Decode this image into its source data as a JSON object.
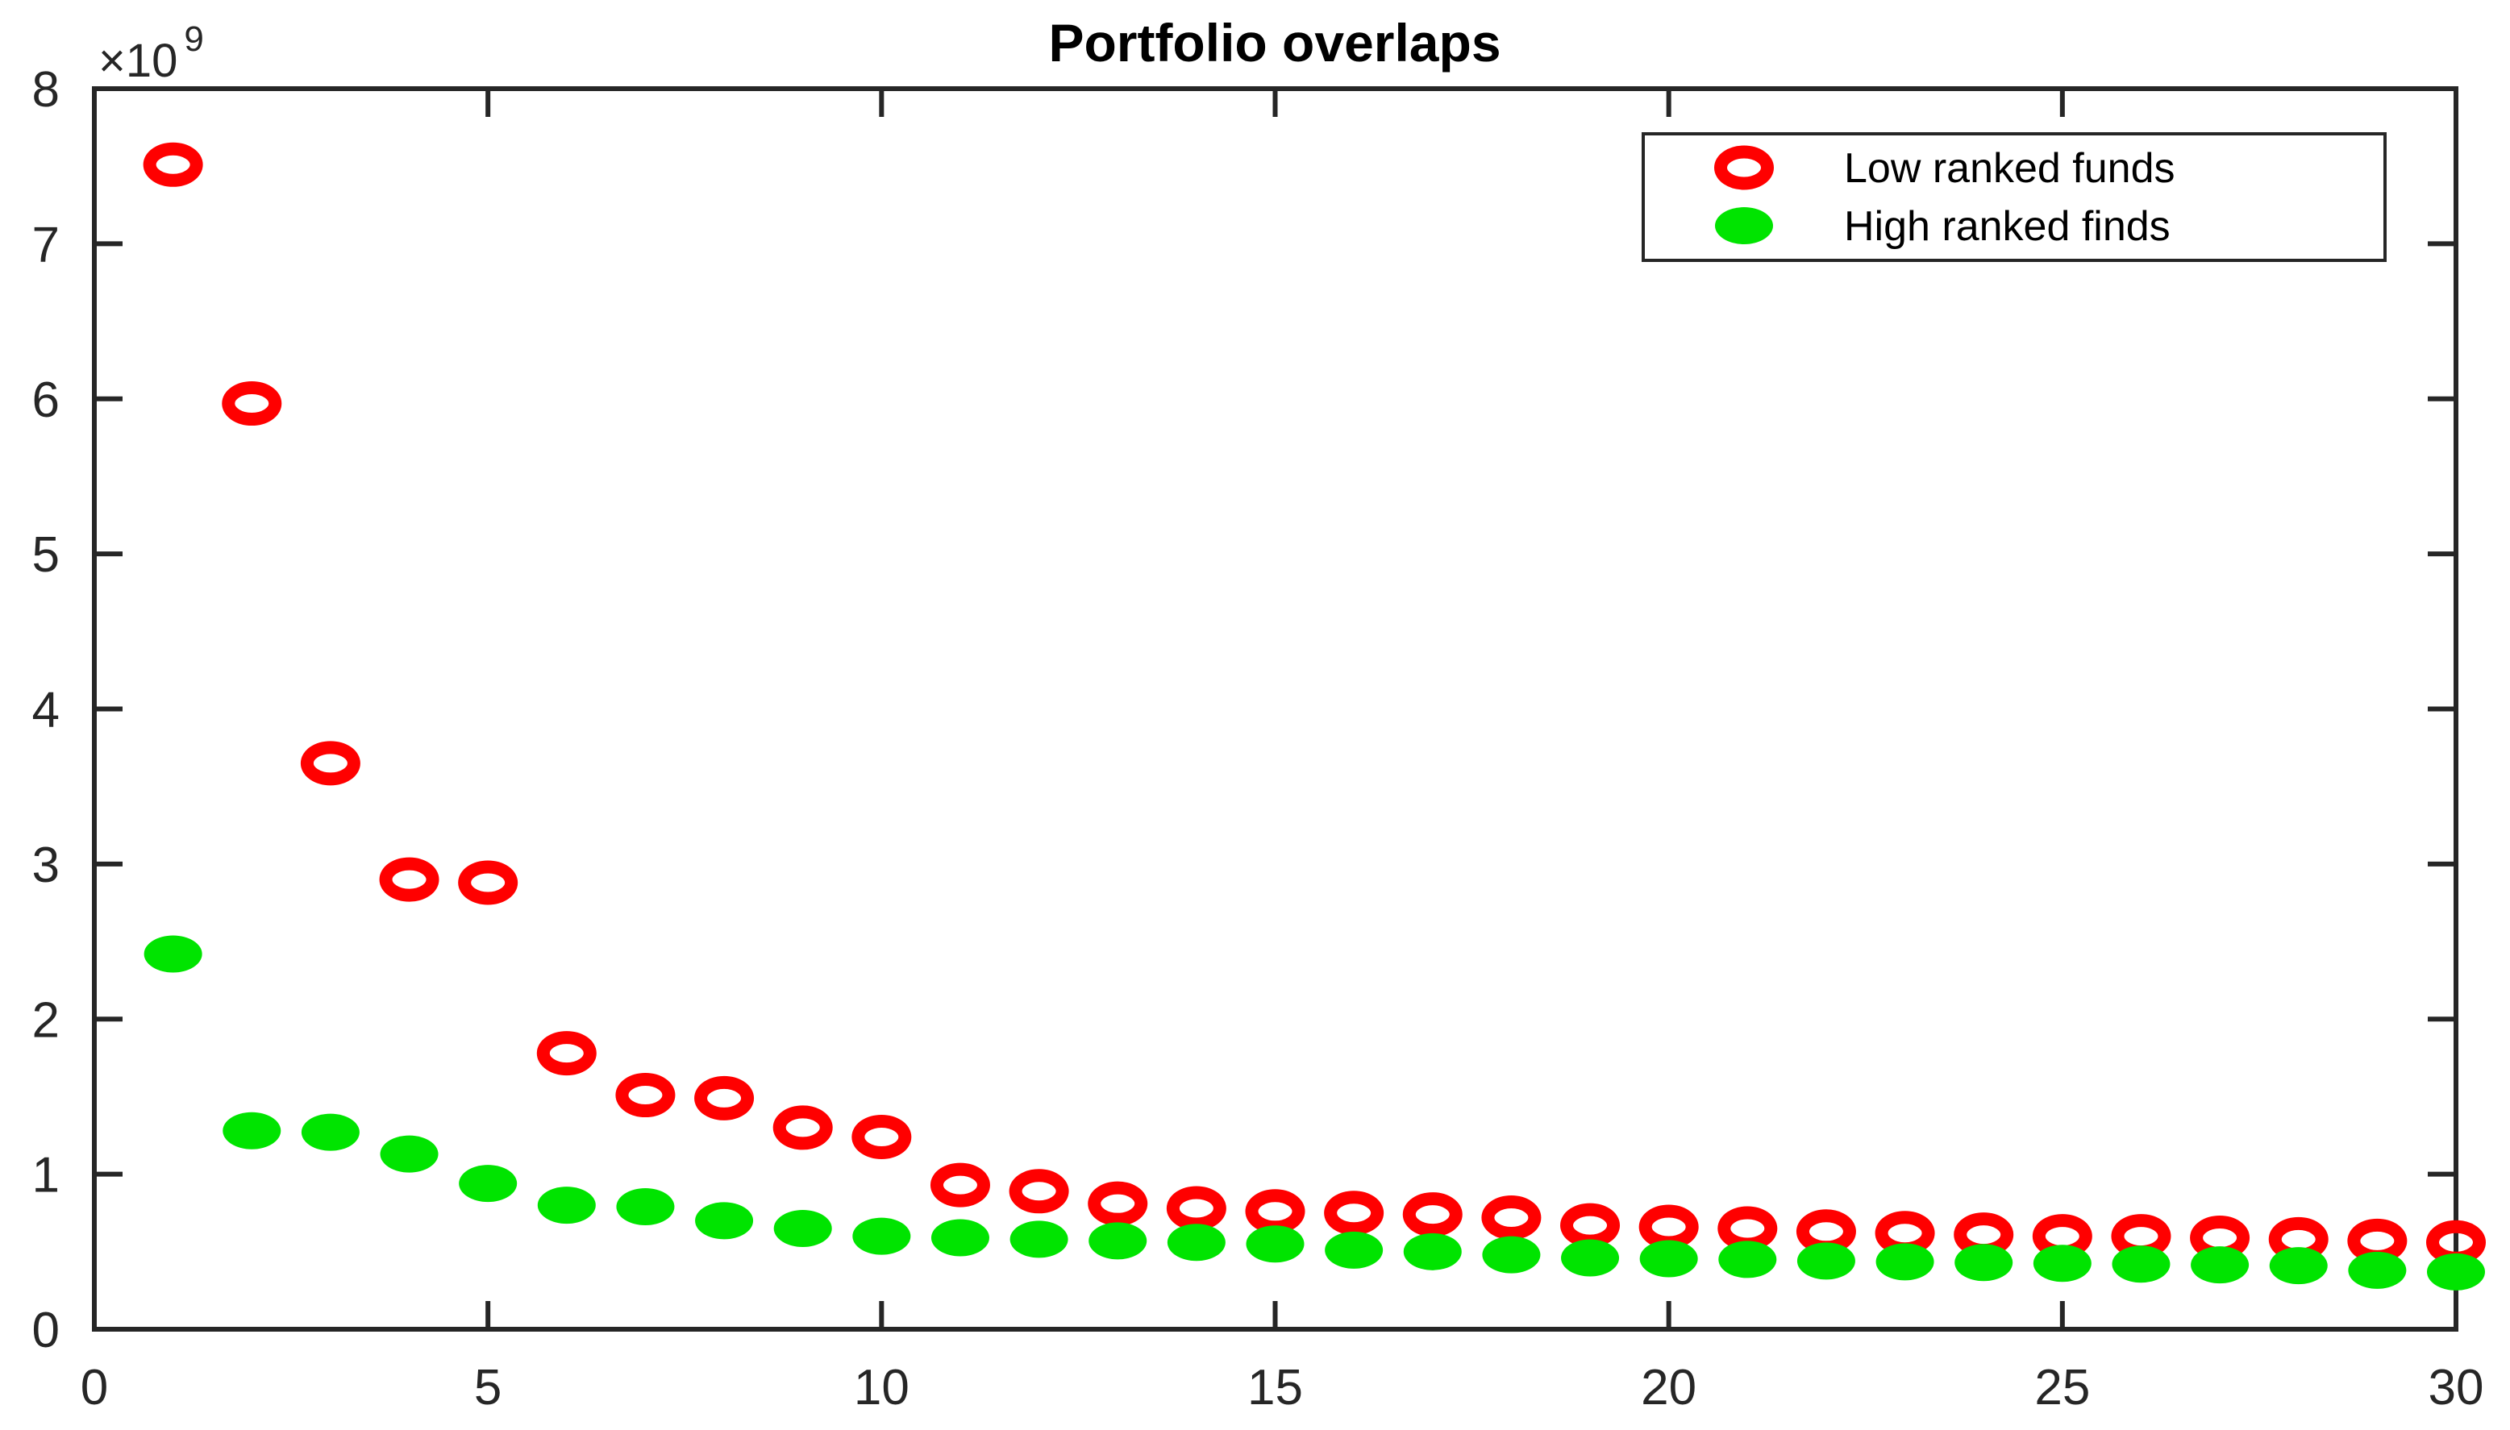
{
  "figure": {
    "title": "Portfolio overlaps",
    "y_exponent_base": "×10",
    "y_exponent_power": "9"
  },
  "colors": {
    "low_ranked": "#ff0000",
    "high_ranked": "#00e400",
    "axis": "#262626",
    "title": "#000000",
    "background": "#ffffff"
  },
  "chart_data": {
    "type": "scatter",
    "title": "Portfolio overlaps",
    "xlabel": "",
    "ylabel": "",
    "y_unit": "×10⁹",
    "xlim": [
      0,
      30
    ],
    "ylim_in_1e9": [
      0,
      8
    ],
    "x_ticks": [
      0,
      5,
      10,
      15,
      20,
      25,
      30
    ],
    "y_ticks": [
      0,
      1,
      2,
      3,
      4,
      5,
      6,
      7,
      8
    ],
    "grid": false,
    "legend_position": "top-right",
    "box": true,
    "x": [
      1,
      2,
      3,
      4,
      5,
      6,
      7,
      8,
      9,
      10,
      11,
      12,
      13,
      14,
      15,
      16,
      17,
      18,
      19,
      20,
      21,
      22,
      23,
      24,
      25,
      26,
      27,
      28,
      29,
      30
    ],
    "series": [
      {
        "name": "Low ranked funds",
        "marker": "open-circle",
        "color": "#ff0000",
        "values_in_1e9": [
          7.51,
          5.97,
          3.65,
          2.9,
          2.88,
          1.78,
          1.51,
          1.49,
          1.3,
          1.24,
          0.93,
          0.89,
          0.81,
          0.78,
          0.76,
          0.75,
          0.74,
          0.72,
          0.67,
          0.66,
          0.65,
          0.63,
          0.62,
          0.61,
          0.6,
          0.6,
          0.59,
          0.58,
          0.57,
          0.56
        ]
      },
      {
        "name": "High ranked finds",
        "marker": "filled-circle",
        "color": "#00e400",
        "values_in_1e9": [
          2.42,
          1.28,
          1.27,
          1.13,
          0.94,
          0.8,
          0.79,
          0.7,
          0.65,
          0.6,
          0.59,
          0.58,
          0.57,
          0.56,
          0.55,
          0.51,
          0.5,
          0.48,
          0.46,
          0.455,
          0.45,
          0.44,
          0.435,
          0.43,
          0.425,
          0.42,
          0.415,
          0.41,
          0.38,
          0.37
        ]
      }
    ]
  }
}
